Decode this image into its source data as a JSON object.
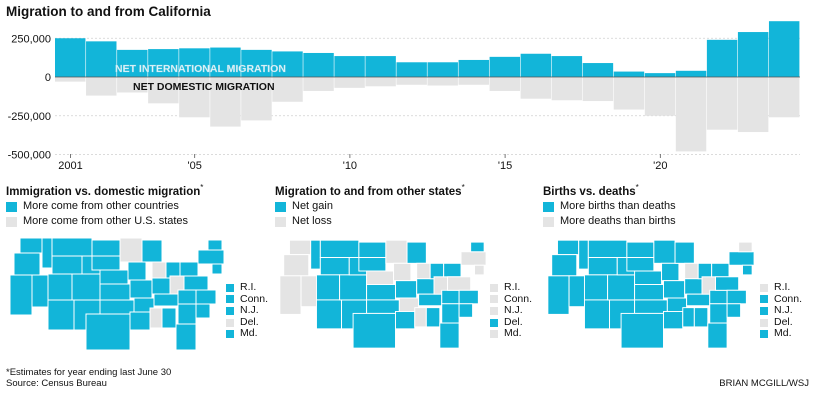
{
  "title": "Migration to and from California",
  "colors": {
    "accent": "#12b5d9",
    "gray": "#e4e4e4",
    "outline": "#ffffff"
  },
  "chart_data": [
    {
      "type": "bar",
      "title": "Migration to and from California",
      "x": [
        2001,
        2002,
        2003,
        2004,
        2005,
        2006,
        2007,
        2008,
        2009,
        2010,
        2011,
        2012,
        2013,
        2014,
        2015,
        2016,
        2017,
        2018,
        2019,
        2020,
        2021,
        2022,
        2023,
        2024
      ],
      "x_tick_labels": [
        "2001",
        "'05",
        "'10",
        "'15",
        "'20"
      ],
      "x_tick_values": [
        2001,
        2005,
        2010,
        2015,
        2020
      ],
      "y_tick_labels": [
        "250,000",
        "0",
        "-250,000",
        "-500,000"
      ],
      "y_tick_values": [
        250000,
        0,
        -250000,
        -500000
      ],
      "ylim": [
        -520000,
        370000
      ],
      "series": [
        {
          "name": "NET INTERNATIONAL MIGRATION",
          "color": "#12b5d9",
          "values": [
            250000,
            230000,
            175000,
            180000,
            185000,
            190000,
            175000,
            165000,
            155000,
            135000,
            135000,
            95000,
            95000,
            110000,
            130000,
            150000,
            135000,
            90000,
            35000,
            25000,
            40000,
            240000,
            290000,
            360000
          ]
        },
        {
          "name": "NET DOMESTIC MIGRATION",
          "color": "#e4e4e4",
          "values": [
            -30000,
            -120000,
            -100000,
            -170000,
            -260000,
            -320000,
            -280000,
            -160000,
            -90000,
            -70000,
            -60000,
            -50000,
            -55000,
            -50000,
            -90000,
            -140000,
            -150000,
            -155000,
            -210000,
            -250000,
            -480000,
            -340000,
            -355000,
            -260000
          ]
        }
      ]
    },
    {
      "type": "map",
      "title": "Immigration vs. domestic migration",
      "legend": [
        {
          "label": "More come from other countries",
          "color": "#12b5d9"
        },
        {
          "label": "More come from other U.S. states",
          "color": "#e4e4e4"
        }
      ],
      "small_states": [
        {
          "label": "R.I.",
          "color": "#12b5d9"
        },
        {
          "label": "Conn.",
          "color": "#12b5d9"
        },
        {
          "label": "N.J.",
          "color": "#12b5d9"
        },
        {
          "label": "Del.",
          "color": "#e4e4e4"
        },
        {
          "label": "Md.",
          "color": "#12b5d9"
        }
      ]
    },
    {
      "type": "map",
      "title": "Migration to and from other states",
      "legend": [
        {
          "label": "Net gain",
          "color": "#12b5d9"
        },
        {
          "label": "Net loss",
          "color": "#e4e4e4"
        }
      ],
      "small_states": [
        {
          "label": "R.I.",
          "color": "#e4e4e4"
        },
        {
          "label": "Conn.",
          "color": "#e4e4e4"
        },
        {
          "label": "N.J.",
          "color": "#e4e4e4"
        },
        {
          "label": "Del.",
          "color": "#12b5d9"
        },
        {
          "label": "Md.",
          "color": "#e4e4e4"
        }
      ]
    },
    {
      "type": "map",
      "title": "Births vs. deaths",
      "legend": [
        {
          "label": "More births than deaths",
          "color": "#12b5d9"
        },
        {
          "label": "More deaths than births",
          "color": "#e4e4e4"
        }
      ],
      "small_states": [
        {
          "label": "R.I.",
          "color": "#e4e4e4"
        },
        {
          "label": "Conn.",
          "color": "#12b5d9"
        },
        {
          "label": "N.J.",
          "color": "#12b5d9"
        },
        {
          "label": "Del.",
          "color": "#e4e4e4"
        },
        {
          "label": "Md.",
          "color": "#12b5d9"
        }
      ]
    }
  ],
  "panel_markers": [
    "*",
    "*",
    "*"
  ],
  "footnote": {
    "line1": "*Estimates for year ending last June 30",
    "line2": "Source: Census Bureau"
  },
  "credit": "BRIAN MCGILL/WSJ"
}
